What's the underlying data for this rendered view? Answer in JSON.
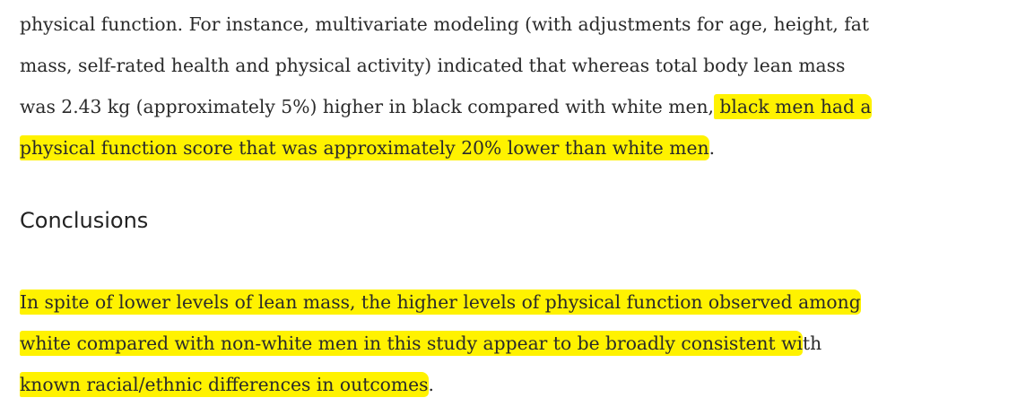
{
  "body": [
    {
      "segments": [
        {
          "text": "physical function. For instance, multivariate modeling (with adjustments for age, height, fat",
          "highlight": false
        }
      ]
    },
    {
      "segments": [
        {
          "text": "mass, self-rated health and physical activity) indicated that whereas total body lean mass",
          "highlight": false
        }
      ]
    },
    {
      "segments": [
        {
          "text": "was 2.43 kg (approximately 5%) higher in black compared with white men,",
          "highlight": false
        },
        {
          "text": " black men had a",
          "highlight": true
        }
      ]
    },
    {
      "segments": [
        {
          "text": "physical function score that was approximately 20% lower than white men",
          "highlight": true
        },
        {
          "text": ".",
          "highlight": false
        }
      ]
    }
  ],
  "heading": "Conclusions",
  "conclusions": [
    {
      "segments": [
        {
          "text": "In spite of lower levels of lean mass, the higher levels of physical function observed among",
          "highlight": true
        }
      ]
    },
    {
      "segments": [
        {
          "text": "white compared with non-white men in this study appear to be broadly consistent wi",
          "highlight": true
        },
        {
          "text": "th",
          "highlight": false
        }
      ]
    },
    {
      "segments": [
        {
          "text": "known racial/ethnic differences in outcomes",
          "highlight": true
        },
        {
          "text": ".",
          "highlight": false
        }
      ]
    }
  ]
}
